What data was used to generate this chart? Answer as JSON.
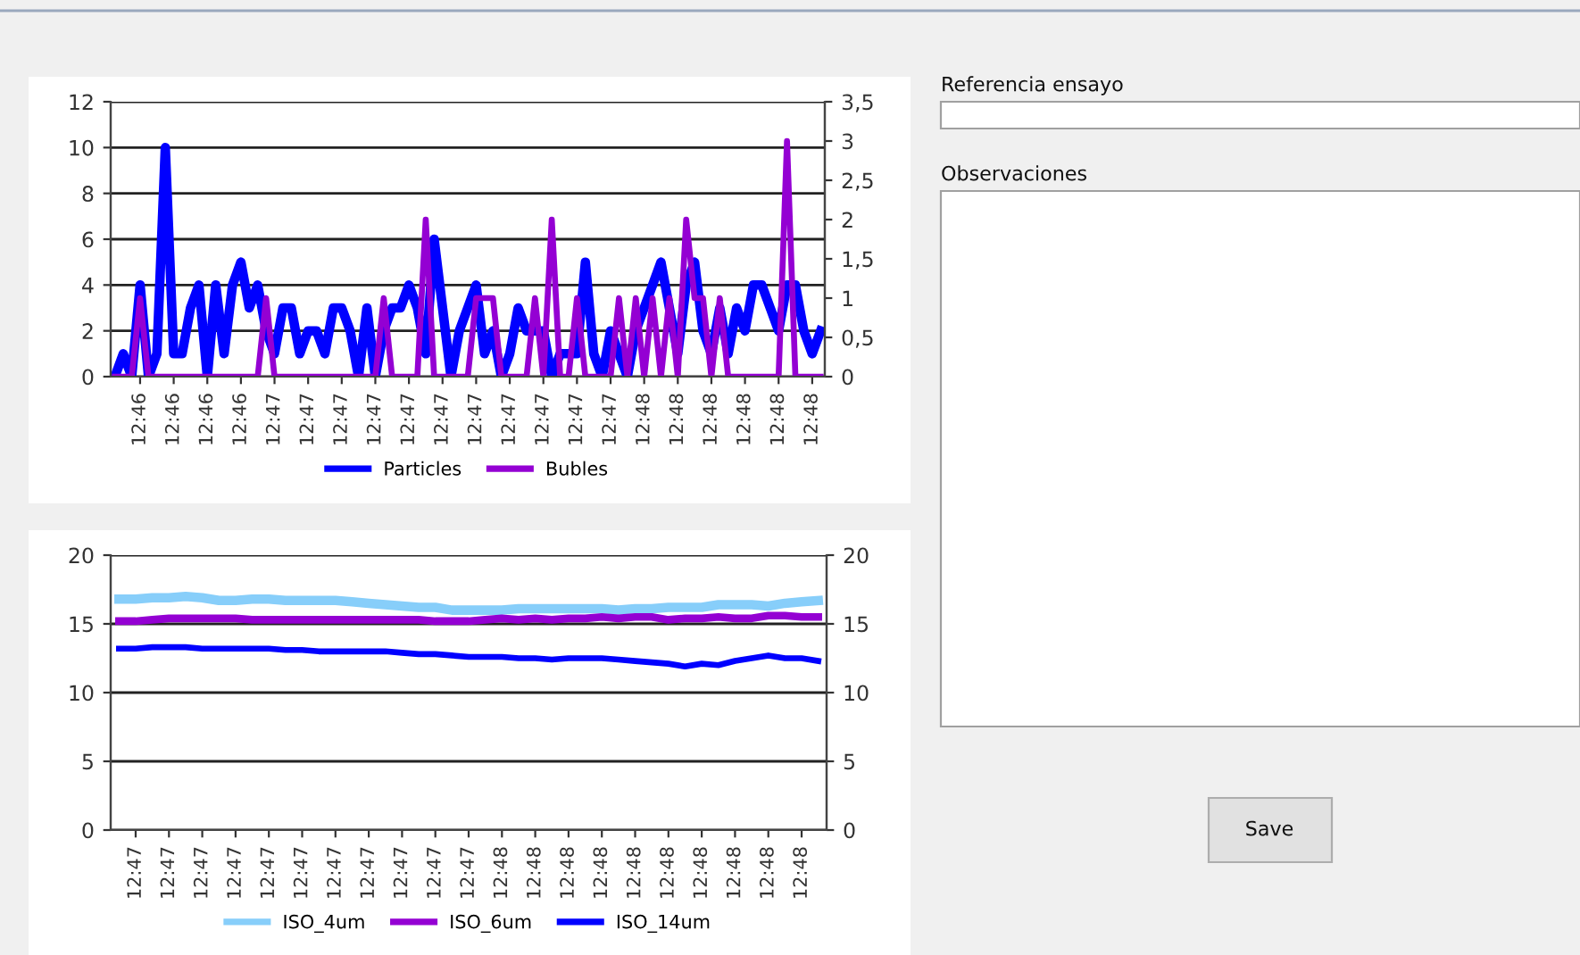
{
  "chart_data": [
    {
      "type": "line",
      "categories": [
        null,
        null,
        null,
        "12:46",
        null,
        null,
        null,
        "12:46",
        null,
        null,
        null,
        "12:46",
        null,
        null,
        null,
        "12:46",
        null,
        null,
        null,
        "12:47",
        null,
        null,
        null,
        "12:47",
        null,
        null,
        null,
        "12:47",
        null,
        null,
        null,
        "12:47",
        null,
        null,
        null,
        "12:47",
        null,
        null,
        null,
        "12:47",
        null,
        null,
        null,
        "12:47",
        null,
        null,
        null,
        "12:47",
        null,
        null,
        null,
        "12:47",
        null,
        null,
        null,
        "12:47",
        null,
        null,
        null,
        "12:47",
        null,
        null,
        null,
        "12:48",
        null,
        null,
        null,
        "12:48",
        null,
        null,
        null,
        "12:48",
        null,
        null,
        null,
        "12:48",
        null,
        null,
        null,
        "12:48",
        null,
        null,
        null,
        "12:48",
        null
      ],
      "series": [
        {
          "name": "Particles",
          "color": "#0000ff",
          "values": [
            0,
            1,
            0,
            4,
            0,
            1,
            10,
            1,
            1,
            3,
            4,
            0,
            4,
            1,
            4,
            5,
            3,
            4,
            2,
            1,
            3,
            3,
            1,
            2,
            2,
            1,
            3,
            3,
            2,
            0,
            3,
            0,
            2,
            3,
            3,
            4,
            3,
            1,
            6,
            3,
            0,
            2,
            3,
            4,
            1,
            2,
            0,
            1,
            3,
            2,
            2,
            2,
            0,
            1,
            1,
            1,
            5,
            1,
            0,
            2,
            1,
            0,
            2,
            3,
            4,
            5,
            3,
            1,
            4,
            5,
            2,
            1,
            3,
            1,
            3,
            2,
            4,
            4,
            3,
            2,
            4,
            4,
            2,
            1,
            2
          ]
        },
        {
          "name": "Bubles",
          "color": "#9400d3",
          "axis": "y2",
          "values": [
            0,
            0,
            0,
            1,
            0,
            0,
            0,
            0,
            0,
            0,
            0,
            0,
            0,
            0,
            0,
            0,
            0,
            0,
            1,
            0,
            0,
            0,
            0,
            0,
            0,
            0,
            0,
            0,
            0,
            0,
            0,
            0,
            1,
            0,
            0,
            0,
            0,
            2,
            0,
            0,
            0,
            0,
            0,
            1,
            1,
            1,
            0,
            0,
            0,
            0,
            1,
            0,
            2,
            0,
            0,
            1,
            0,
            0,
            0,
            0,
            1,
            0,
            1,
            0,
            1,
            0,
            1,
            0,
            2,
            1,
            1,
            0,
            1,
            0,
            0,
            0,
            0,
            0,
            0,
            0,
            3,
            0,
            0,
            0,
            0
          ]
        }
      ],
      "ylim": [
        0,
        12
      ],
      "yticks": [
        0,
        2,
        4,
        6,
        8,
        10,
        12
      ],
      "y2lim": [
        0,
        3.5
      ],
      "y2ticks": [
        0,
        {
          "value": 0.5,
          "label": "0,5"
        },
        1,
        {
          "value": 1.5,
          "label": "1,5"
        },
        2,
        {
          "value": 2.5,
          "label": "2,5"
        },
        3,
        {
          "value": 3.5,
          "label": "3,5"
        }
      ],
      "grid": "y",
      "legend": "bottom"
    },
    {
      "type": "line",
      "categories": [
        null,
        "12:47",
        null,
        "12:47",
        null,
        "12:47",
        null,
        "12:47",
        null,
        "12:47",
        null,
        "12:47",
        null,
        "12:47",
        null,
        "12:47",
        null,
        "12:47",
        null,
        "12:47",
        null,
        "12:47",
        null,
        "12:48",
        null,
        "12:48",
        null,
        "12:48",
        null,
        "12:48",
        null,
        "12:48",
        null,
        "12:48",
        null,
        "12:48",
        null,
        "12:48",
        null,
        "12:48",
        null,
        "12:48",
        null
      ],
      "series": [
        {
          "name": "ISO_4um",
          "color": "#87cefa",
          "values": [
            16.8,
            16.8,
            16.9,
            16.9,
            17.0,
            16.9,
            16.7,
            16.7,
            16.8,
            16.8,
            16.7,
            16.7,
            16.7,
            16.7,
            16.6,
            16.5,
            16.4,
            16.3,
            16.2,
            16.2,
            16.0,
            16.0,
            16.0,
            16.0,
            16.1,
            16.1,
            16.1,
            16.1,
            16.1,
            16.1,
            16.0,
            16.1,
            16.1,
            16.2,
            16.2,
            16.2,
            16.4,
            16.4,
            16.4,
            16.3,
            16.5,
            16.6,
            16.7
          ]
        },
        {
          "name": "ISO_6um",
          "color": "#9400d3",
          "values": [
            15.2,
            15.2,
            15.3,
            15.4,
            15.4,
            15.4,
            15.4,
            15.4,
            15.3,
            15.3,
            15.3,
            15.3,
            15.3,
            15.3,
            15.3,
            15.3,
            15.3,
            15.3,
            15.3,
            15.2,
            15.2,
            15.2,
            15.3,
            15.4,
            15.3,
            15.4,
            15.3,
            15.4,
            15.4,
            15.5,
            15.4,
            15.5,
            15.5,
            15.3,
            15.4,
            15.4,
            15.5,
            15.4,
            15.4,
            15.6,
            15.6,
            15.5,
            15.5
          ]
        },
        {
          "name": "ISO_14um",
          "color": "#0000ff",
          "values": [
            13.2,
            13.2,
            13.3,
            13.3,
            13.3,
            13.2,
            13.2,
            13.2,
            13.2,
            13.2,
            13.1,
            13.1,
            13.0,
            13.0,
            13.0,
            13.0,
            13.0,
            12.9,
            12.8,
            12.8,
            12.7,
            12.6,
            12.6,
            12.6,
            12.5,
            12.5,
            12.4,
            12.5,
            12.5,
            12.5,
            12.4,
            12.3,
            12.2,
            12.1,
            11.9,
            12.1,
            12.0,
            12.3,
            12.5,
            12.7,
            12.5,
            12.5,
            12.3
          ]
        }
      ],
      "ylim": [
        0,
        20
      ],
      "yticks": [
        0,
        5,
        10,
        15,
        20
      ],
      "y2lim": [
        0,
        20
      ],
      "y2ticks": [
        0,
        5,
        10,
        15,
        20
      ],
      "grid": "y",
      "legend": "bottom"
    },
    {
      "type": "other",
      "annotations": [
        "Referencia ensayo",
        "Observaciones",
        "Save"
      ]
    }
  ]
}
